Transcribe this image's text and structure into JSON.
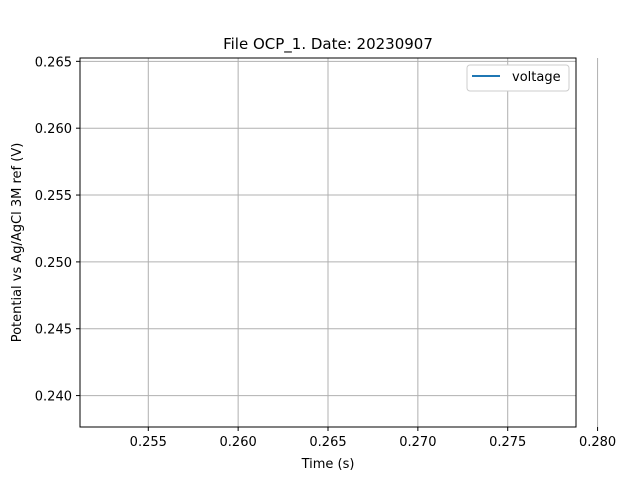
{
  "chart_data": {
    "type": "line",
    "title": "File OCP_1. Date: 20230907",
    "xlabel": "Time (s)",
    "ylabel": "Potential vs Ag/AgCl 3M ref (V)",
    "xlim": [
      0.2512,
      0.2788
    ],
    "ylim": [
      0.23765,
      0.26525
    ],
    "xticks": [
      0.255,
      0.26,
      0.265,
      0.27,
      0.275,
      0.28
    ],
    "xtick_labels": [
      "0.255",
      "0.260",
      "0.265",
      "0.270",
      "0.275",
      "0.280"
    ],
    "yticks": [
      0.24,
      0.245,
      0.25,
      0.255,
      0.26,
      0.265
    ],
    "ytick_labels": [
      "0.240",
      "0.245",
      "0.250",
      "0.255",
      "0.260",
      "0.265"
    ],
    "grid": true,
    "legend_position": "upper-right",
    "series": [
      {
        "name": "voltage",
        "color": "#1f77b4",
        "x": [],
        "y": []
      }
    ]
  }
}
